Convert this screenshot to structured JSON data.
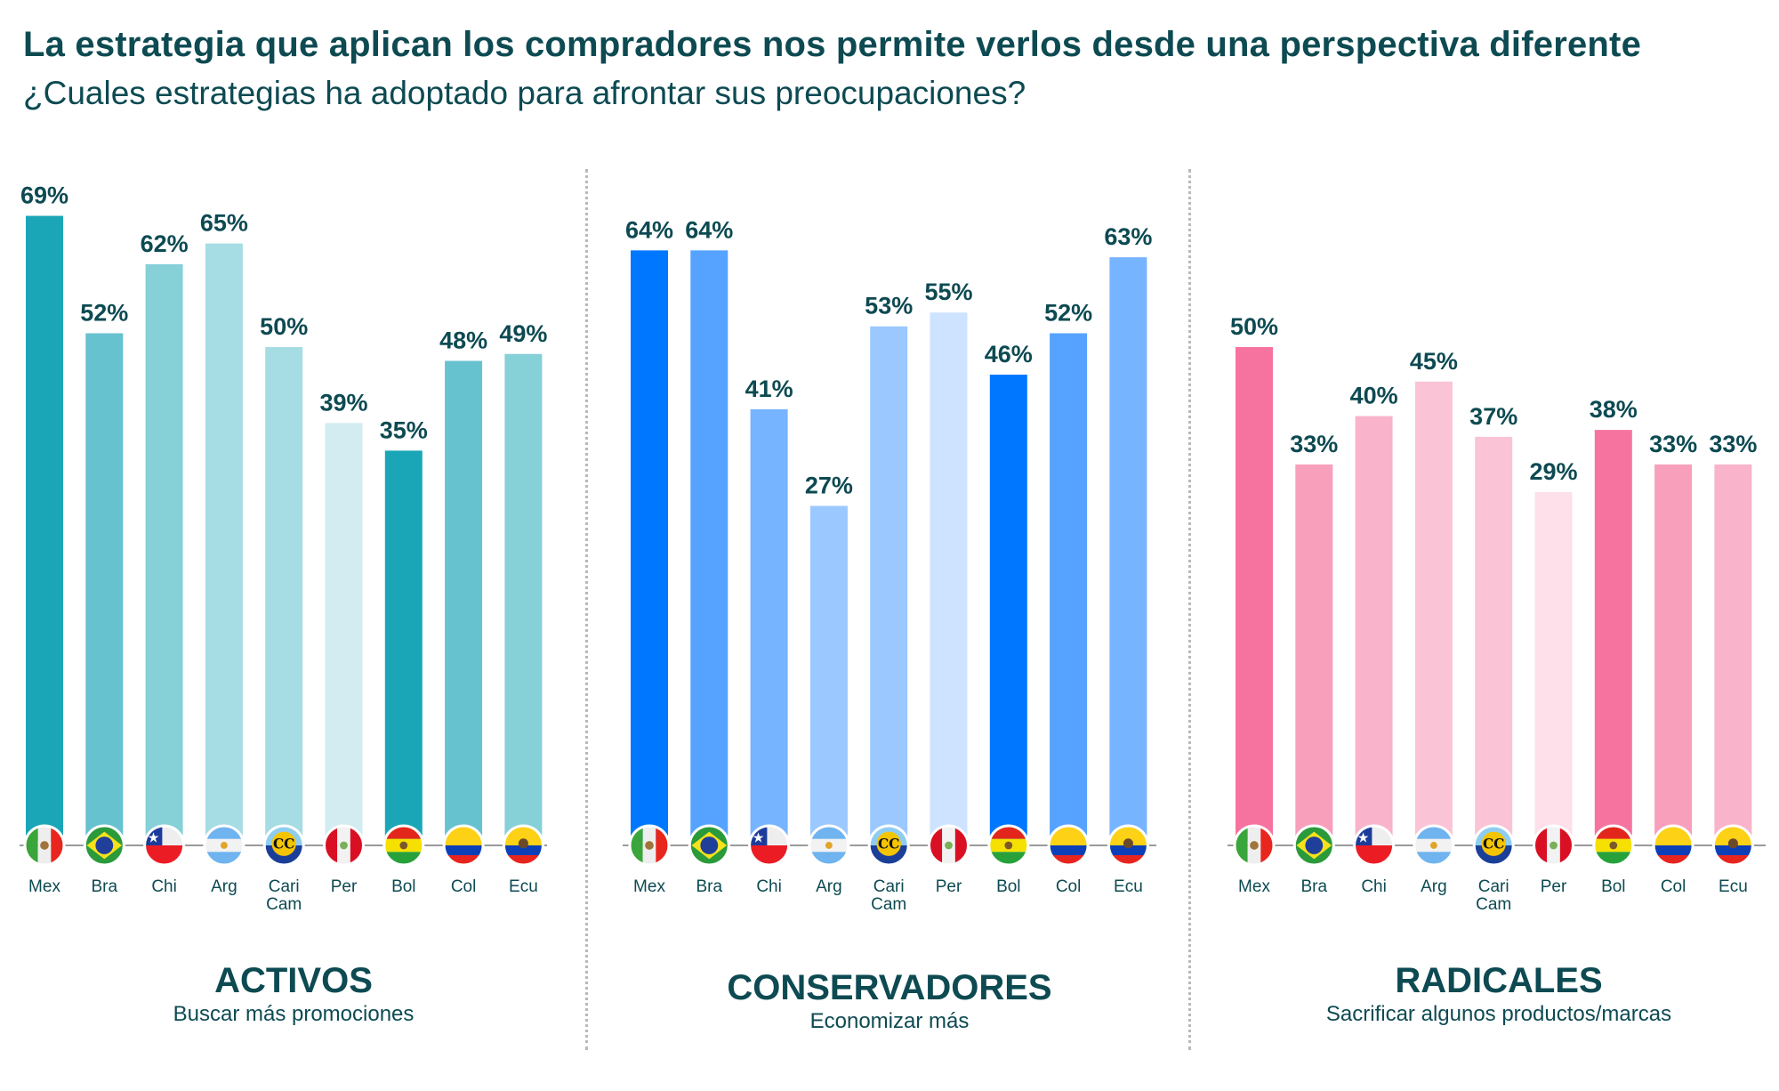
{
  "header": {
    "title": "La estrategia que aplican los compradores nos permite verlos desde una perspectiva diferente",
    "subtitle": "¿Cuales estrategias ha adoptado para afrontar sus preocupaciones?"
  },
  "chart_data": [
    {
      "type": "bar",
      "title": "ACTIVOS",
      "subtitle": "Buscar más promociones",
      "categories": [
        "Mex",
        "Bra",
        "Chi",
        "Arg",
        "Cari Cam",
        "Per",
        "Bol",
        "Col",
        "Ecu"
      ],
      "values": [
        69,
        52,
        62,
        65,
        50,
        39,
        35,
        48,
        49
      ],
      "value_labels": [
        "69%",
        "52%",
        "62%",
        "65%",
        "50%",
        "39%",
        "35%",
        "48%",
        "49%"
      ],
      "colors": [
        "#1ba6b7",
        "#67c2d0",
        "#86d0d8",
        "#a6dce4",
        "#a6dce4",
        "#d2ecf1",
        "#1ba6b7",
        "#67c2d0",
        "#86d0d8"
      ],
      "xlabel": "",
      "ylabel": "",
      "unit": "%",
      "grid": false
    },
    {
      "type": "bar",
      "title": "CONSERVADORES",
      "subtitle": "Economizar más",
      "categories": [
        "Mex",
        "Bra",
        "Chi",
        "Arg",
        "Cari Cam",
        "Per",
        "Bol",
        "Col",
        "Ecu"
      ],
      "values": [
        64,
        64,
        41,
        27,
        53,
        55,
        46,
        52,
        63
      ],
      "value_labels": [
        "64%",
        "64%",
        "41%",
        "27%",
        "53%",
        "55%",
        "46%",
        "52%",
        "63%"
      ],
      "colors": [
        "#0077ff",
        "#55a3ff",
        "#76b4ff",
        "#9bc8ff",
        "#9bc8ff",
        "#cde3ff",
        "#0077ff",
        "#55a3ff",
        "#76b4ff"
      ],
      "xlabel": "",
      "ylabel": "",
      "unit": "%",
      "grid": false
    },
    {
      "type": "bar",
      "title": "RADICALES",
      "subtitle": "Sacrificar algunos productos/marcas",
      "categories": [
        "Mex",
        "Bra",
        "Chi",
        "Arg",
        "Cari Cam",
        "Per",
        "Bol",
        "Col",
        "Ecu"
      ],
      "values": [
        50,
        33,
        40,
        45,
        37,
        29,
        38,
        33,
        33
      ],
      "value_labels": [
        "50%",
        "33%",
        "40%",
        "45%",
        "37%",
        "29%",
        "38%",
        "33%",
        "33%"
      ],
      "colors": [
        "#f7739f",
        "#f89fbc",
        "#f9b3cb",
        "#fac4d6",
        "#fac4d6",
        "#fde0e9",
        "#f7739f",
        "#f89fbc",
        "#f9b3cb"
      ],
      "xlabel": "",
      "ylabel": "",
      "unit": "%",
      "grid": false
    }
  ],
  "flags": [
    "mexico-flag",
    "brazil-flag",
    "chile-flag",
    "argentina-flag",
    "caricom-flag",
    "peru-flag",
    "bolivia-flag",
    "colombia-flag",
    "ecuador-flag"
  ],
  "colors": {
    "text": "#0d4a52",
    "divider": "#b9b9b9",
    "baseline": "#9a9a9a"
  }
}
